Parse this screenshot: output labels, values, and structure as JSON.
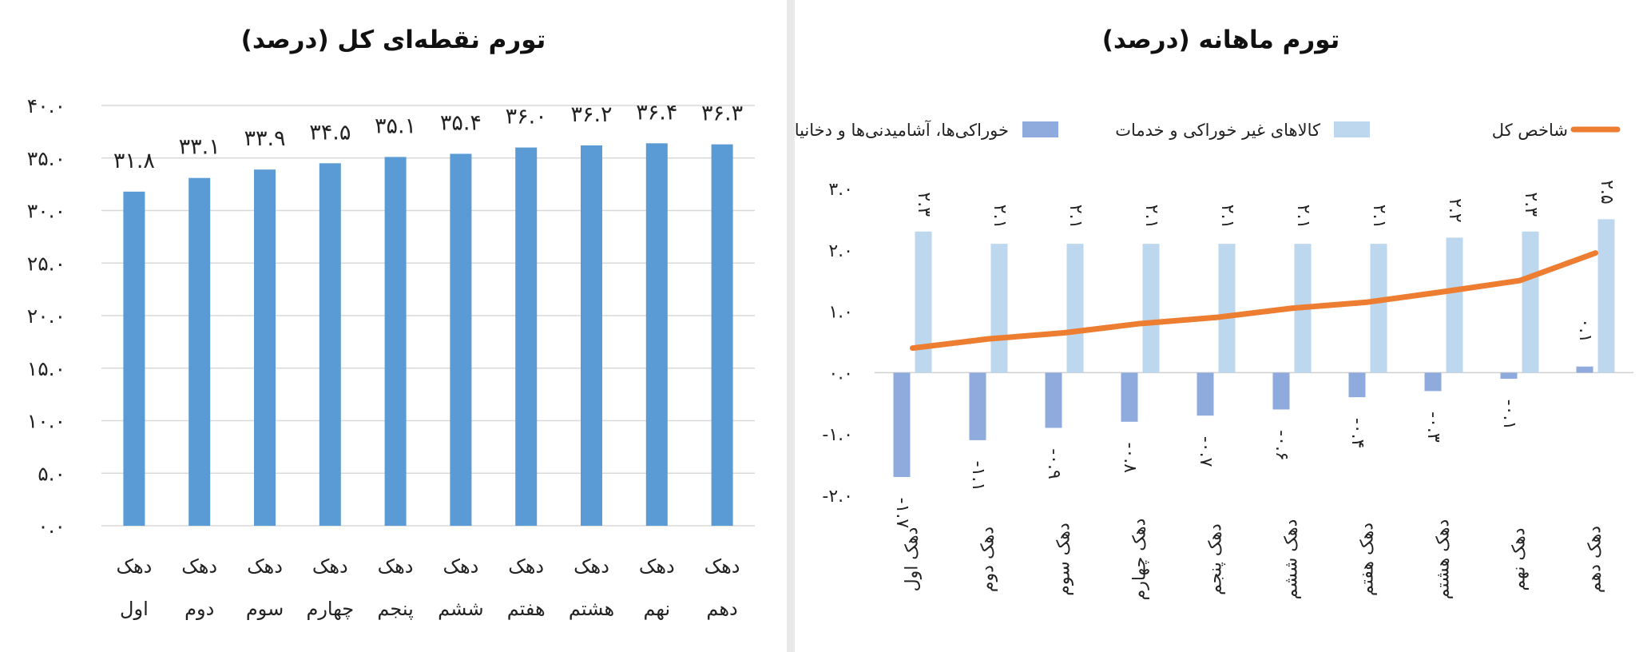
{
  "left_chart": {
    "title": "تورم نقطه‌ای کل (درصد)"
  },
  "right_chart": {
    "title": "تورم ماهانه (درصد)"
  },
  "chart_data": [
    {
      "type": "bar",
      "title": "تورم نقطه‌ای کل (درصد)",
      "categories": [
        "دهک اول",
        "دهک دوم",
        "دهک سوم",
        "دهک چهارم",
        "دهک پنجم",
        "دهک ششم",
        "دهک هفتم",
        "دهک هشتم",
        "دهک نهم",
        "دهک دهم"
      ],
      "category_lines": [
        [
          "دهک",
          "اول"
        ],
        [
          "دهک",
          "دوم"
        ],
        [
          "دهک",
          "سوم"
        ],
        [
          "دهک",
          "چهارم"
        ],
        [
          "دهک",
          "پنجم"
        ],
        [
          "دهک",
          "ششم"
        ],
        [
          "دهک",
          "هفتم"
        ],
        [
          "دهک",
          "هشتم"
        ],
        [
          "دهک",
          "نهم"
        ],
        [
          "دهک",
          "دهم"
        ]
      ],
      "values": [
        31.8,
        33.1,
        33.9,
        34.5,
        35.1,
        35.4,
        36.0,
        36.2,
        36.4,
        36.3
      ],
      "value_labels": [
        "۳۱.۸",
        "۳۳.۱",
        "۳۳.۹",
        "۳۴.۵",
        "۳۵.۱",
        "۳۵.۴",
        "۳۶.۰",
        "۳۶.۲",
        "۳۶.۴",
        "۳۶.۳"
      ],
      "ylim": [
        0,
        40
      ],
      "y_ticks": [
        0,
        5,
        10,
        15,
        20,
        25,
        30,
        35,
        40
      ],
      "y_tick_labels": [
        "۰.۰",
        "۵.۰",
        "۱۰.۰",
        "۱۵.۰",
        "۲۰.۰",
        "۲۵.۰",
        "۳۰.۰",
        "۳۵.۰",
        "۴۰.۰"
      ],
      "grid": true,
      "colors": {
        "bar": "#5b9bd5",
        "grid": "#d9d9d9"
      }
    },
    {
      "type": "bar",
      "title": "تورم ماهانه (درصد)",
      "categories": [
        "دهک اول",
        "دهک دوم",
        "دهک سوم",
        "دهک چهارم",
        "دهک پنجم",
        "دهک ششم",
        "دهک هفتم",
        "دهک هشتم",
        "دهک نهم",
        "دهک دهم"
      ],
      "legend_position": "top",
      "series": [
        {
          "name": "خوراکی‌ها، آشامیدنی‌ها و دخانیات",
          "kind": "bar",
          "color": "#8faadc",
          "values": [
            -1.7,
            -1.1,
            -0.9,
            -0.8,
            -0.7,
            -0.6,
            -0.4,
            -0.3,
            -0.1,
            0.1
          ],
          "value_labels": [
            "-۱.۷",
            "-۱.۱",
            "-۰.۹",
            "-۰.۸",
            "-۰.۷",
            "-۰.۶",
            "-۰.۴",
            "-۰.۳",
            "-۰.۱",
            "۰.۱"
          ]
        },
        {
          "name": "کالاهای غیر خوراکی و خدمات",
          "kind": "bar",
          "color": "#bdd7ee",
          "values": [
            2.3,
            2.1,
            2.1,
            2.1,
            2.1,
            2.1,
            2.1,
            2.2,
            2.3,
            2.5
          ],
          "value_labels": [
            "۲.۳",
            "۲.۱",
            "۲.۱",
            "۲.۱",
            "۲.۱",
            "۲.۱",
            "۲.۱",
            "۲.۲",
            "۲.۳",
            "۲.۵"
          ]
        },
        {
          "name": "شاخص کل",
          "kind": "line",
          "color": "#ed7d31",
          "values": [
            0.4,
            0.55,
            0.65,
            0.8,
            0.9,
            1.05,
            1.15,
            1.32,
            1.5,
            1.95
          ]
        }
      ],
      "ylim": [
        -2,
        3
      ],
      "y_ticks": [
        -2,
        -1,
        0,
        1,
        2,
        3
      ],
      "y_tick_labels": [
        "-۲.۰",
        "-۱.۰",
        "۰.۰",
        "۱.۰",
        "۲.۰",
        "۳.۰"
      ],
      "grid": false
    }
  ]
}
